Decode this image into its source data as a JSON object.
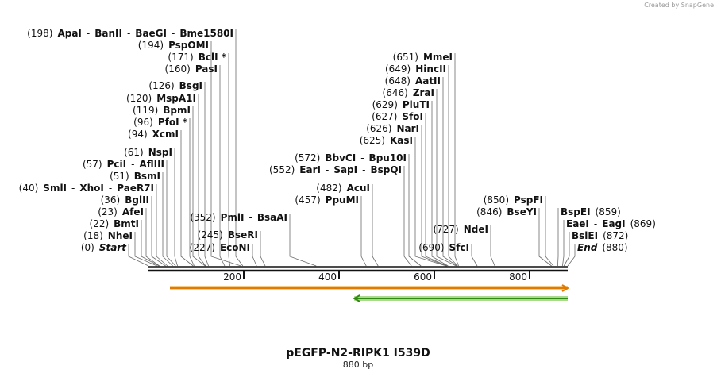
{
  "credit": "Created by SnapGene",
  "plasmid": {
    "name": "pEGFP-N2-RIPK1 I539D",
    "length_label": "880 bp",
    "length": 880
  },
  "axis_ticks": [
    {
      "pos": 200,
      "label": "200"
    },
    {
      "pos": 400,
      "label": "400"
    },
    {
      "pos": 600,
      "label": "600"
    },
    {
      "pos": 800,
      "label": "800"
    }
  ],
  "features": [
    {
      "name": "orange-arrow",
      "start": 45,
      "end": 880,
      "direction": "forward",
      "color": "#f0a020",
      "outline": "#e07a00"
    },
    {
      "name": "green-arrow",
      "start": 432,
      "end": 880,
      "direction": "reverse",
      "color": "#66bb33",
      "outline": "#2f8a10"
    }
  ],
  "sites": [
    {
      "label_side": "left",
      "text": [
        [
          "(198)"
        ],
        [
          "ApaI",
          "nm"
        ],
        [
          "-"
        ],
        [
          "BanII",
          "nm"
        ],
        [
          "-"
        ],
        [
          "BaeGI",
          "nm"
        ],
        [
          "-"
        ],
        [
          "Bme1580I",
          "nm"
        ]
      ],
      "sites": [
        198
      ]
    },
    {
      "label_side": "left",
      "text": [
        [
          "(194)"
        ],
        [
          "PspOMI",
          "nm"
        ]
      ],
      "sites": [
        194
      ]
    },
    {
      "label_side": "left",
      "text": [
        [
          "(171)"
        ],
        [
          "BclI *",
          "nm"
        ]
      ],
      "sites": [
        171
      ]
    },
    {
      "label_side": "left",
      "text": [
        [
          "(160)"
        ],
        [
          "PasI",
          "nm"
        ]
      ],
      "sites": [
        160
      ]
    },
    {
      "label_side": "left",
      "text": [
        [
          "(126)"
        ],
        [
          "BsgI",
          "nm"
        ]
      ],
      "sites": [
        126
      ]
    },
    {
      "label_side": "left",
      "text": [
        [
          "(120)"
        ],
        [
          "MspA1I",
          "nm"
        ]
      ],
      "sites": [
        120
      ]
    },
    {
      "label_side": "left",
      "text": [
        [
          "(119)"
        ],
        [
          "BpmI",
          "nm"
        ]
      ],
      "sites": [
        119
      ]
    },
    {
      "label_side": "left",
      "text": [
        [
          "(96)"
        ],
        [
          "PfoI *",
          "nm"
        ]
      ],
      "sites": [
        96
      ]
    },
    {
      "label_side": "left",
      "text": [
        [
          "(94)"
        ],
        [
          "XcmI",
          "nm"
        ]
      ],
      "sites": [
        94
      ]
    },
    {
      "label_side": "left",
      "text": [
        [
          "(61)"
        ],
        [
          "NspI",
          "nm"
        ]
      ],
      "sites": [
        61
      ]
    },
    {
      "label_side": "left",
      "text": [
        [
          "(57)"
        ],
        [
          "PciI",
          "nm"
        ],
        [
          "-"
        ],
        [
          "AflIII",
          "nm"
        ]
      ],
      "sites": [
        57
      ]
    },
    {
      "label_side": "left",
      "text": [
        [
          "(51)"
        ],
        [
          "BsmI",
          "nm"
        ]
      ],
      "sites": [
        51
      ]
    },
    {
      "label_side": "left",
      "text": [
        [
          "(40)"
        ],
        [
          "SmlI",
          "nm"
        ],
        [
          "-"
        ],
        [
          "XhoI",
          "nm"
        ],
        [
          "-"
        ],
        [
          "PaeR7I",
          "nm"
        ]
      ],
      "sites": [
        40
      ]
    },
    {
      "label_side": "left",
      "text": [
        [
          "(36)"
        ],
        [
          "BglII",
          "nm"
        ]
      ],
      "sites": [
        36
      ]
    },
    {
      "label_side": "left",
      "text": [
        [
          "(23)"
        ],
        [
          "AfeI",
          "nm"
        ]
      ],
      "sites": [
        23
      ]
    },
    {
      "label_side": "left",
      "text": [
        [
          "(22)"
        ],
        [
          "BmtI",
          "nm"
        ]
      ],
      "sites": [
        22
      ]
    },
    {
      "label_side": "left",
      "text": [
        [
          "(18)"
        ],
        [
          "NheI",
          "nm"
        ]
      ],
      "sites": [
        18
      ]
    },
    {
      "label_side": "left",
      "text": [
        [
          "(0)"
        ],
        [
          "Start",
          "it"
        ]
      ],
      "sites": [
        0
      ]
    },
    {
      "label_side": "left",
      "text": [
        [
          "(352)"
        ],
        [
          "PmlI",
          "nm"
        ],
        [
          "-"
        ],
        [
          "BsaAI",
          "nm"
        ]
      ],
      "sites": [
        352
      ]
    },
    {
      "label_side": "left",
      "text": [
        [
          "(245)"
        ],
        [
          "BseRI",
          "nm"
        ]
      ],
      "sites": [
        245
      ]
    },
    {
      "label_side": "left",
      "text": [
        [
          "(227)"
        ],
        [
          "EcoNI",
          "nm"
        ]
      ],
      "sites": [
        227
      ]
    },
    {
      "label_side": "left",
      "text": [
        [
          "(572)"
        ],
        [
          "BbvCI",
          "nm"
        ],
        [
          "-"
        ],
        [
          "Bpu10I",
          "nm"
        ]
      ],
      "sites": [
        572
      ]
    },
    {
      "label_side": "left",
      "text": [
        [
          "(552)"
        ],
        [
          "EarI",
          "nm"
        ],
        [
          "-"
        ],
        [
          "SapI",
          "nm"
        ],
        [
          "-"
        ],
        [
          "BspQI",
          "nm"
        ]
      ],
      "sites": [
        552
      ]
    },
    {
      "label_side": "left",
      "text": [
        [
          "(482)"
        ],
        [
          "AcuI",
          "nm"
        ]
      ],
      "sites": [
        482
      ]
    },
    {
      "label_side": "left",
      "text": [
        [
          "(457)"
        ],
        [
          "PpuMI",
          "nm"
        ]
      ],
      "sites": [
        457
      ]
    },
    {
      "label_side": "left",
      "text": [
        [
          "(651)"
        ],
        [
          "MmeI",
          "nm"
        ]
      ],
      "sites": [
        651
      ]
    },
    {
      "label_side": "left",
      "text": [
        [
          "(649)"
        ],
        [
          "HincII",
          "nm"
        ]
      ],
      "sites": [
        649
      ]
    },
    {
      "label_side": "left",
      "text": [
        [
          "(648)"
        ],
        [
          "AatII",
          "nm"
        ]
      ],
      "sites": [
        648
      ]
    },
    {
      "label_side": "left",
      "text": [
        [
          "(646)"
        ],
        [
          "ZraI",
          "nm"
        ]
      ],
      "sites": [
        646
      ]
    },
    {
      "label_side": "left",
      "text": [
        [
          "(629)"
        ],
        [
          "PluTI",
          "nm"
        ]
      ],
      "sites": [
        629
      ]
    },
    {
      "label_side": "left",
      "text": [
        [
          "(627)"
        ],
        [
          "SfoI",
          "nm"
        ]
      ],
      "sites": [
        627
      ]
    },
    {
      "label_side": "left",
      "text": [
        [
          "(626)"
        ],
        [
          "NarI",
          "nm"
        ]
      ],
      "sites": [
        626
      ]
    },
    {
      "label_side": "left",
      "text": [
        [
          "(625)"
        ],
        [
          "KasI",
          "nm"
        ]
      ],
      "sites": [
        625
      ]
    },
    {
      "label_side": "left",
      "text": [
        [
          "(727)"
        ],
        [
          "NdeI",
          "nm"
        ]
      ],
      "sites": [
        727
      ]
    },
    {
      "label_side": "left",
      "text": [
        [
          "(690)"
        ],
        [
          "SfcI",
          "nm"
        ]
      ],
      "sites": [
        690
      ]
    },
    {
      "label_side": "left",
      "text": [
        [
          "(850)"
        ],
        [
          "PspFI",
          "nm"
        ]
      ],
      "sites": [
        850
      ]
    },
    {
      "label_side": "left",
      "text": [
        [
          "(846)"
        ],
        [
          "BseYI",
          "nm"
        ]
      ],
      "sites": [
        846
      ]
    },
    {
      "label_side": "right",
      "text": [
        [
          "BspEI",
          "nm"
        ],
        [
          "(859)"
        ]
      ],
      "sites": [
        859
      ]
    },
    {
      "label_side": "right",
      "text": [
        [
          "EaeI",
          "nm"
        ],
        [
          "-"
        ],
        [
          "EagI",
          "nm"
        ],
        [
          "(869)"
        ]
      ],
      "sites": [
        869
      ]
    },
    {
      "label_side": "right",
      "text": [
        [
          "BsiEI",
          "nm"
        ],
        [
          "(872)"
        ]
      ],
      "sites": [
        872
      ]
    },
    {
      "label_side": "right",
      "text": [
        [
          "End",
          "it"
        ],
        [
          "(880)"
        ]
      ],
      "sites": [
        880
      ]
    }
  ]
}
